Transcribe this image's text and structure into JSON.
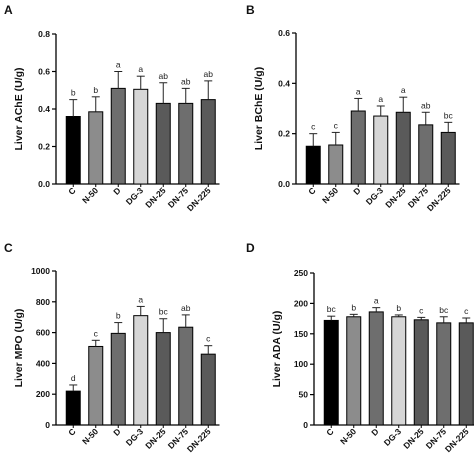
{
  "chart_data": [
    {
      "panel": "A",
      "type": "bar",
      "ylabel": "Liver AChE (U/g)",
      "ylim": [
        0,
        0.8
      ],
      "yticks": [
        "0.0",
        "0.2",
        "0.4",
        "0.6",
        "0.8"
      ],
      "categories": [
        "C",
        "N-50",
        "D",
        "DG-3",
        "DN-25",
        "DN-75",
        "DN-225"
      ],
      "values": [
        0.36,
        0.385,
        0.51,
        0.505,
        0.43,
        0.43,
        0.45
      ],
      "errors": [
        0.09,
        0.08,
        0.09,
        0.07,
        0.11,
        0.08,
        0.1
      ],
      "labels": [
        "b",
        "b",
        "a",
        "a",
        "ab",
        "ab",
        "ab"
      ],
      "colors": [
        "#000000",
        "#8c8c8c",
        "#6e6e6e",
        "#d6d6d6",
        "#5a5a5a",
        "#6e6e6e",
        "#5a5a5a"
      ]
    },
    {
      "panel": "B",
      "type": "bar",
      "ylabel": "Liver BChE (U/g)",
      "ylim": [
        0,
        0.6
      ],
      "yticks": [
        "0.0",
        "0.2",
        "0.4",
        "0.6"
      ],
      "categories": [
        "C",
        "N-50",
        "D",
        "DG-3",
        "DN-25",
        "DN-75",
        "DN-225"
      ],
      "values": [
        0.15,
        0.155,
        0.29,
        0.27,
        0.285,
        0.235,
        0.205
      ],
      "errors": [
        0.05,
        0.05,
        0.05,
        0.04,
        0.06,
        0.05,
        0.04
      ],
      "labels": [
        "c",
        "c",
        "a",
        "a",
        "a",
        "ab",
        "bc"
      ],
      "colors": [
        "#000000",
        "#8c8c8c",
        "#6e6e6e",
        "#d6d6d6",
        "#5a5a5a",
        "#6e6e6e",
        "#5a5a5a"
      ]
    },
    {
      "panel": "C",
      "type": "bar",
      "ylabel": "Liver MPO (U/g)",
      "ylim": [
        0,
        1000
      ],
      "yticks": [
        "0",
        "200",
        "400",
        "600",
        "800",
        "1000"
      ],
      "categories": [
        "C",
        "N-50",
        "D",
        "DG-3",
        "DN-25",
        "DN-75",
        "DN-225"
      ],
      "values": [
        220,
        510,
        595,
        710,
        600,
        635,
        460
      ],
      "errors": [
        40,
        40,
        70,
        60,
        90,
        80,
        55
      ],
      "labels": [
        "d",
        "c",
        "b",
        "a",
        "bc",
        "ab",
        "c"
      ],
      "colors": [
        "#000000",
        "#8c8c8c",
        "#6e6e6e",
        "#d6d6d6",
        "#5a5a5a",
        "#6e6e6e",
        "#5a5a5a"
      ]
    },
    {
      "panel": "D",
      "type": "bar",
      "ylabel": "Liver ADA (U/g)",
      "ylim": [
        0,
        250
      ],
      "yticks": [
        "0",
        "50",
        "100",
        "150",
        "200",
        "250"
      ],
      "categories": [
        "C",
        "N-50",
        "D",
        "DG-3",
        "DN-25",
        "DN-75",
        "DN-225"
      ],
      "values": [
        172,
        178,
        186,
        178,
        173,
        168,
        168
      ],
      "errors": [
        7,
        4,
        7,
        3,
        4,
        10,
        8
      ],
      "labels": [
        "bc",
        "b",
        "a",
        "b",
        "c",
        "bc",
        "c"
      ],
      "colors": [
        "#000000",
        "#8c8c8c",
        "#6e6e6e",
        "#d6d6d6",
        "#5a5a5a",
        "#6e6e6e",
        "#5a5a5a"
      ]
    }
  ]
}
